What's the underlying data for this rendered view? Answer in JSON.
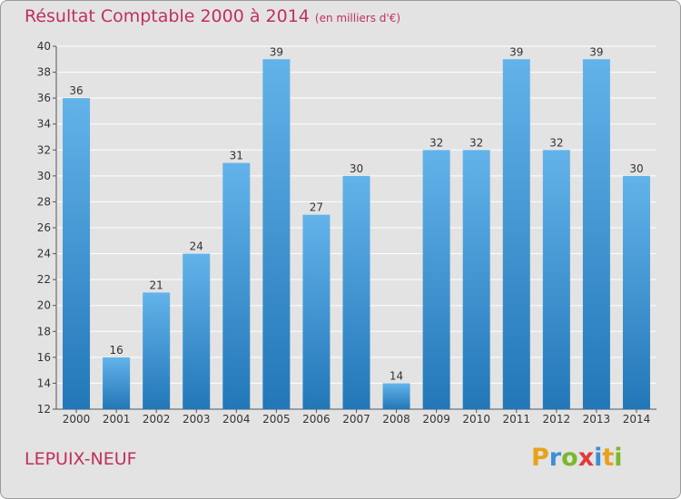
{
  "header": {
    "title": "Résultat Comptable 2000 à 2014",
    "subtitle": "(en milliers d'€)"
  },
  "footer": {
    "place": "LEPUIX-NEUF",
    "logo_letters": [
      "P",
      "r",
      "o",
      "x",
      "i",
      "t",
      "i"
    ],
    "logo_colors": [
      "#e8a21a",
      "#3a8fd6",
      "#7ab82c",
      "#e03a3a",
      "#3a8fd6",
      "#e8a21a",
      "#7ab82c"
    ]
  },
  "chart_data": {
    "type": "bar",
    "title": "Résultat Comptable 2000 à 2014",
    "subtitle": "(en milliers d'€)",
    "categories": [
      "2000",
      "2001",
      "2002",
      "2003",
      "2004",
      "2005",
      "2006",
      "2007",
      "2008",
      "2009",
      "2010",
      "2011",
      "2012",
      "2013",
      "2014"
    ],
    "values": [
      36,
      16,
      21,
      24,
      31,
      39,
      27,
      30,
      14,
      32,
      32,
      39,
      32,
      39,
      30
    ],
    "ylim": [
      12,
      40
    ],
    "yticks": [
      12,
      14,
      16,
      18,
      20,
      22,
      24,
      26,
      28,
      30,
      32,
      34,
      36,
      38,
      40
    ],
    "grid": true,
    "bar_color_top": "#63b3ea",
    "bar_color_bottom": "#2277b8"
  }
}
